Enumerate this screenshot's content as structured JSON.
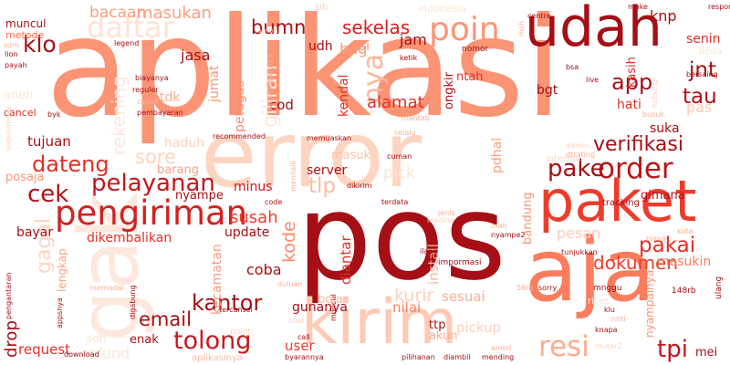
{
  "background": "#ffffff",
  "words": [
    {
      "text": "aplikasi",
      "color": "#fb9474"
    },
    {
      "text": "error",
      "color": "#fdd5c1"
    },
    {
      "text": "pos",
      "color": "#a50f15"
    },
    {
      "text": "aja",
      "color": "#fb7d5d"
    },
    {
      "text": "gak",
      "color": "#fee8dd"
    },
    {
      "text": "paket",
      "color": "#ef3b2c"
    },
    {
      "text": "udah",
      "color": "#a50f15"
    },
    {
      "text": "kirim",
      "color": "#fdcab5"
    },
    {
      "text": "pengiriman",
      "color": "#d42020"
    },
    {
      "text": "order",
      "color": "#b91419"
    },
    {
      "text": "pake",
      "color": "#a50f15"
    },
    {
      "text": "poin",
      "color": "#fc9474"
    },
    {
      "text": "pelayanan",
      "color": "#c4161c"
    },
    {
      "text": "tolong",
      "color": "#cb181d"
    },
    {
      "text": "kantor",
      "color": "#a50f15"
    },
    {
      "text": "email",
      "color": "#a50f15"
    },
    {
      "text": "cek",
      "color": "#b11218"
    },
    {
      "text": "verifikasi",
      "color": "#a50f15"
    },
    {
      "text": "dateng",
      "color": "#e32f27"
    },
    {
      "text": "daftar",
      "color": "#fee3d6"
    },
    {
      "text": "resi",
      "color": "#fcab8f"
    },
    {
      "text": "tpi",
      "color": "#c4161c"
    },
    {
      "text": "pakai",
      "color": "#e32f27"
    },
    {
      "text": "dokumen",
      "color": "#ef3b2c"
    },
    {
      "text": "klo",
      "color": "#a50f15"
    },
    {
      "text": "app",
      "color": "#a50f15"
    },
    {
      "text": "tau",
      "color": "#b11218"
    },
    {
      "text": "jnt",
      "color": "#a50f15"
    },
    {
      "text": "masukan",
      "color": "#fc9f81"
    },
    {
      "text": "bacaan",
      "color": "#fc9f81"
    },
    {
      "text": "bumn",
      "color": "#a50f15"
    },
    {
      "text": "sekelas",
      "color": "#d42020"
    },
    {
      "text": "muncul",
      "color": "#a50f15"
    },
    {
      "text": "metode",
      "color": "#fb6e4e"
    },
    {
      "text": "jasa",
      "color": "#a50f15"
    },
    {
      "text": "jumat",
      "color": "#fc9777"
    },
    {
      "text": "tlp",
      "color": "#fcbba1"
    },
    {
      "text": "susah",
      "color": "#ef3b2c"
    },
    {
      "text": "kode",
      "color": "#fc8a6a"
    },
    {
      "text": "kurir",
      "color": "#fdd0bc"
    },
    {
      "text": "sesuai",
      "color": "#fcaf93"
    },
    {
      "text": "nilai",
      "color": "#fc8161"
    },
    {
      "text": "gunanya",
      "color": "#a50f15"
    },
    {
      "text": "kecamatan",
      "color": "#fc9c7d"
    },
    {
      "text": "diantar",
      "color": "#e32f27"
    },
    {
      "text": "install",
      "color": "#fcb69b"
    },
    {
      "text": "coba",
      "color": "#a50f15"
    },
    {
      "text": "minus",
      "color": "#cb181d"
    },
    {
      "text": "server",
      "color": "#b11218"
    },
    {
      "text": "masuk",
      "color": "#fcc3ab"
    },
    {
      "text": "sore",
      "color": "#fdd5c1"
    },
    {
      "text": "rekening",
      "color": "#fee8dd"
    },
    {
      "text": "nya",
      "color": "#fcb69b"
    },
    {
      "text": "bug",
      "color": "#fc9777"
    },
    {
      "text": "jam",
      "color": "#a50f15"
    },
    {
      "text": "udh",
      "color": "#a50f15"
    },
    {
      "text": "isi",
      "color": "#fc9474"
    },
    {
      "text": "bgt",
      "color": "#a50f15"
    },
    {
      "text": "alamat",
      "color": "#e32f27"
    },
    {
      "text": "cod",
      "color": "#a50f15"
    },
    {
      "text": "petugas",
      "color": "#fc8a6a"
    },
    {
      "text": "kendal",
      "color": "#e32f27"
    },
    {
      "text": "ongkir",
      "color": "#b11218"
    },
    {
      "text": "ntah",
      "color": "#e32f27"
    },
    {
      "text": "hati",
      "color": "#e32f27"
    },
    {
      "text": "suka",
      "color": "#a50f15"
    },
    {
      "text": "pas",
      "color": "#fdcab5"
    },
    {
      "text": "kasih",
      "color": "#e32f27"
    },
    {
      "text": "senin",
      "color": "#e32f27"
    },
    {
      "text": "knp",
      "color": "#a50f15"
    },
    {
      "text": "gimana",
      "color": "#b11218"
    },
    {
      "text": "tujuan",
      "color": "#a50f15"
    },
    {
      "text": "haduh",
      "color": "#fdd0bc"
    },
    {
      "text": "barang",
      "color": "#fca082"
    },
    {
      "text": "nyampe",
      "color": "#a50f15"
    },
    {
      "text": "gagal",
      "color": "#fdd5c1"
    },
    {
      "text": "posaja",
      "color": "#fc9474"
    },
    {
      "text": "bayar",
      "color": "#a50f15"
    },
    {
      "text": "dikembalikan",
      "color": "#e32f27"
    },
    {
      "text": "update",
      "color": "#a50f15"
    },
    {
      "text": "pesan",
      "color": "#fdcab5"
    },
    {
      "text": "lengkap",
      "color": "#fca082"
    },
    {
      "text": "drop",
      "color": "#a50f15"
    },
    {
      "text": "request",
      "color": "#e32f27"
    },
    {
      "text": "refund",
      "color": "#fee3d6"
    },
    {
      "text": "enak",
      "color": "#a50f15"
    },
    {
      "text": "user",
      "color": "#ef3b2c"
    },
    {
      "text": "boja",
      "color": "#fcb69b"
    },
    {
      "text": "pickup",
      "color": "#fdd0bc"
    },
    {
      "text": "tdk",
      "color": "#fcaf93"
    },
    {
      "text": "giliran",
      "color": "#fee8dd"
    },
    {
      "text": "pick",
      "color": "#fee3d6"
    },
    {
      "text": "pdhal",
      "color": "#fc9f81"
    },
    {
      "text": "bandung",
      "color": "#fc9474"
    },
    {
      "text": "mei",
      "color": "#a50f15"
    },
    {
      "text": "nyampainya",
      "color": "#fc9474"
    },
    {
      "text": "masukin",
      "color": "#fb7d5d"
    },
    {
      "text": "ttp",
      "color": "#a50f15"
    },
    {
      "text": "akun",
      "color": "#fcaf93"
    },
    {
      "text": "sdh",
      "color": "#fee3d6"
    },
    {
      "text": "cancel",
      "color": "#e32f27"
    },
    {
      "text": "aneh",
      "color": "#fee3d6"
    },
    {
      "text": "internal",
      "color": "#fdd5c1"
    },
    {
      "text": "tracking",
      "color": "#a50f15"
    },
    {
      "text": "indonesia",
      "color": "#fee3d6"
    },
    {
      "text": "sih",
      "color": "#fdd0bc"
    },
    {
      "text": "legend",
      "color": "#a50f15"
    },
    {
      "text": "lion",
      "color": "#a50f15"
    },
    {
      "text": "payah",
      "color": "#a50f15"
    },
    {
      "text": "biayanya",
      "color": "#a50f15"
    },
    {
      "text": "byk",
      "color": "#a50f15"
    },
    {
      "text": "pembayaran",
      "color": "#a50f15"
    },
    {
      "text": "reguler",
      "color": "#a50f15"
    },
    {
      "text": "recommended",
      "color": "#a50f15"
    },
    {
      "text": "memuaskan",
      "color": "#a50f15"
    },
    {
      "text": "terdata",
      "color": "#a50f15"
    },
    {
      "text": "cuman",
      "color": "#a50f15"
    },
    {
      "text": "dikirim",
      "color": "#a50f15"
    },
    {
      "text": "code",
      "color": "#a50f15"
    },
    {
      "text": "impormasi",
      "color": "#a50f15"
    },
    {
      "text": "ilang",
      "color": "#a50f15"
    },
    {
      "text": "nyampe2",
      "color": "#a50f15"
    },
    {
      "text": "tunjukkan",
      "color": "#a50f15"
    },
    {
      "text": "148rb",
      "color": "#a50f15"
    },
    {
      "text": "ulang",
      "color": "#a50f15"
    },
    {
      "text": "mnggu",
      "color": "#a50f15"
    },
    {
      "text": "sorry",
      "color": "#a50f15"
    },
    {
      "text": "knapa",
      "color": "#a50f15"
    },
    {
      "text": "klu",
      "color": "#a50f15"
    },
    {
      "text": "mending",
      "color": "#a50f15"
    },
    {
      "text": "diambil",
      "color": "#a50f15"
    },
    {
      "text": "pilihanan",
      "color": "#a50f15"
    },
    {
      "text": "byarannya",
      "color": "#a50f15"
    },
    {
      "text": "call",
      "color": "#a50f15"
    },
    {
      "text": "aplikasinya",
      "color": "#fcbba1"
    },
    {
      "text": "download",
      "color": "#a50f15"
    },
    {
      "text": "digabung",
      "color": "#a50f15"
    },
    {
      "text": "pengantaran",
      "color": "#a50f15"
    },
    {
      "text": "appsnya",
      "color": "#a50f15"
    },
    {
      "text": "tercansel",
      "color": "#a50f15"
    },
    {
      "text": "muncul",
      "color": "#a50f15"
    },
    {
      "text": "nomor",
      "color": "#a50f15"
    },
    {
      "text": "ketik",
      "color": "#a50f15"
    },
    {
      "text": "centre",
      "color": "#a50f15"
    },
    {
      "text": "bsa",
      "color": "#a50f15"
    },
    {
      "text": "live",
      "color": "#a50f15"
    },
    {
      "text": "bersaing",
      "color": "#a50f15"
    },
    {
      "text": "make",
      "color": "#a50f15"
    },
    {
      "text": "respon",
      "color": "#a50f15"
    },
    {
      "text": "beda",
      "color": "#fee3d6"
    },
    {
      "text": "busuk",
      "color": "#fcaf93"
    },
    {
      "text": "mantab",
      "color": "#fcaf93"
    },
    {
      "text": "admin",
      "color": "#fdd0bc"
    },
    {
      "text": "jenis",
      "color": "#fcaf93"
    },
    {
      "text": "mah",
      "color": "#fcaf93"
    },
    {
      "text": "biaya",
      "color": "#fcaf93"
    },
    {
      "text": "kota",
      "color": "#fcaf93"
    },
    {
      "text": "mutar2",
      "color": "#fdd0bc"
    },
    {
      "text": "ambil",
      "color": "#fcaf93"
    },
    {
      "text": "nnti",
      "color": "#fcaf93"
    },
    {
      "text": "duluan",
      "color": "#fcaf93"
    },
    {
      "text": "chat",
      "color": "#fdd0bc"
    },
    {
      "text": "memadai",
      "color": "#fcaf93"
    },
    {
      "text": "aman",
      "color": "#fcaf93"
    },
    {
      "text": "sdm",
      "color": "#fcaf93"
    },
    {
      "text": "capek",
      "color": "#fcaf93"
    },
    {
      "text": "msh",
      "color": "#fcaf93"
    },
    {
      "text": "hubungi",
      "color": "#fdd0bc"
    },
    {
      "text": "keterangannya",
      "color": "#fcaf93"
    },
    {
      "text": "point",
      "color": "#fdd5c1"
    },
    {
      "text": "56rb",
      "color": "#fcaf93"
    },
    {
      "text": "ribet",
      "color": "#fee3d6"
    },
    {
      "text": "menilaiii",
      "color": "#fcaf93"
    },
    {
      "text": "loading",
      "color": "#fdd0bc"
    },
    {
      "text": "selalu",
      "color": "#fcaf93"
    },
    {
      "text": "dtrating",
      "color": "#fcaf93"
    },
    {
      "text": "sebelumnya",
      "color": "#fdd0bc"
    }
  ]
}
